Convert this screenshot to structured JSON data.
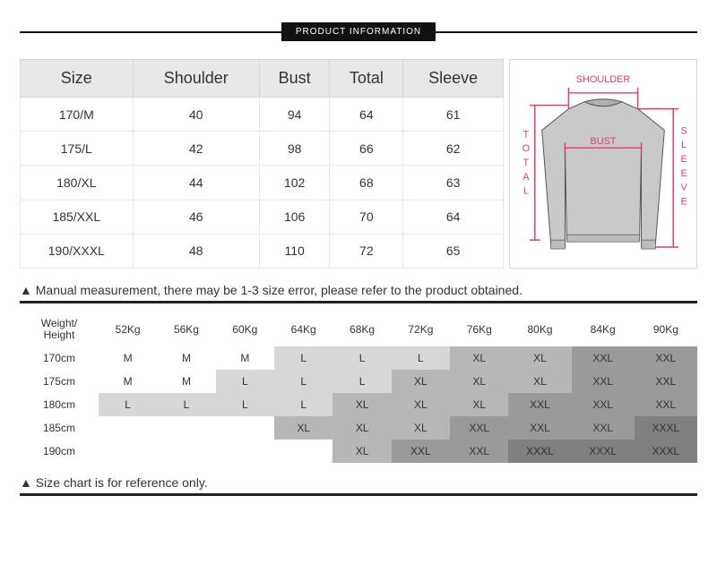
{
  "bannerLabel": "PRODUCT INFORMATION",
  "sizeTable": {
    "columns": [
      "Size",
      "Shoulder",
      "Bust",
      "Total",
      "Sleeve"
    ],
    "rows": [
      [
        "170/M",
        "40",
        "94",
        "64",
        "61"
      ],
      [
        "175/L",
        "42",
        "98",
        "66",
        "62"
      ],
      [
        "180/XL",
        "44",
        "102",
        "68",
        "63"
      ],
      [
        "185/XXL",
        "46",
        "106",
        "70",
        "64"
      ],
      [
        "190/XXXL",
        "48",
        "110",
        "72",
        "65"
      ]
    ]
  },
  "diagram": {
    "labels": {
      "shoulder": "SHOULDER",
      "bust": "BUST",
      "total": "TOTAL",
      "sleeve": "SLEEVE"
    },
    "lineColor": "#e23b6f",
    "garmentFill": "#c9c9c9",
    "garmentStroke": "#555555"
  },
  "note1": "▲ Manual measurement, there may be 1-3 size error, please refer to the product obtained.",
  "recTable": {
    "cornerTop": "Weight/",
    "cornerBottom": "Height",
    "weights": [
      "52Kg",
      "56Kg",
      "60Kg",
      "64Kg",
      "68Kg",
      "72Kg",
      "76Kg",
      "80Kg",
      "84Kg",
      "90Kg"
    ],
    "heights": [
      "170cm",
      "175cm",
      "180cm",
      "185cm",
      "190cm"
    ],
    "cells": [
      [
        [
          "M",
          0
        ],
        [
          "M",
          0
        ],
        [
          "M",
          0
        ],
        [
          "L",
          1
        ],
        [
          "L",
          1
        ],
        [
          "L",
          1
        ],
        [
          "XL",
          2
        ],
        [
          "XL",
          2
        ],
        [
          "XXL",
          3
        ],
        [
          "XXL",
          3
        ]
      ],
      [
        [
          "M",
          0
        ],
        [
          "M",
          0
        ],
        [
          "L",
          1
        ],
        [
          "L",
          1
        ],
        [
          "L",
          1
        ],
        [
          "XL",
          2
        ],
        [
          "XL",
          2
        ],
        [
          "XL",
          2
        ],
        [
          "XXL",
          3
        ],
        [
          "XXL",
          3
        ]
      ],
      [
        [
          "L",
          1
        ],
        [
          "L",
          1
        ],
        [
          "L",
          1
        ],
        [
          "L",
          1
        ],
        [
          "XL",
          2
        ],
        [
          "XL",
          2
        ],
        [
          "XL",
          2
        ],
        [
          "XXL",
          3
        ],
        [
          "XXL",
          3
        ],
        [
          "XXL",
          3
        ]
      ],
      [
        [
          "",
          0
        ],
        [
          "",
          0
        ],
        [
          "",
          0
        ],
        [
          "XL",
          2
        ],
        [
          "XL",
          2
        ],
        [
          "XL",
          2
        ],
        [
          "XXL",
          3
        ],
        [
          "XXL",
          3
        ],
        [
          "XXL",
          3
        ],
        [
          "XXXL",
          4
        ]
      ],
      [
        [
          "",
          0
        ],
        [
          "",
          0
        ],
        [
          "",
          0
        ],
        [
          "",
          0
        ],
        [
          "XL",
          2
        ],
        [
          "XXL",
          3
        ],
        [
          "XXL",
          3
        ],
        [
          "XXXL",
          4
        ],
        [
          "XXXL",
          4
        ],
        [
          "XXXL",
          4
        ]
      ]
    ],
    "shadeColors": [
      "#ffffff",
      "#d7d7d7",
      "#b7b7b7",
      "#9a9a9a",
      "#808080"
    ]
  },
  "note2": "▲ Size chart is for reference only."
}
